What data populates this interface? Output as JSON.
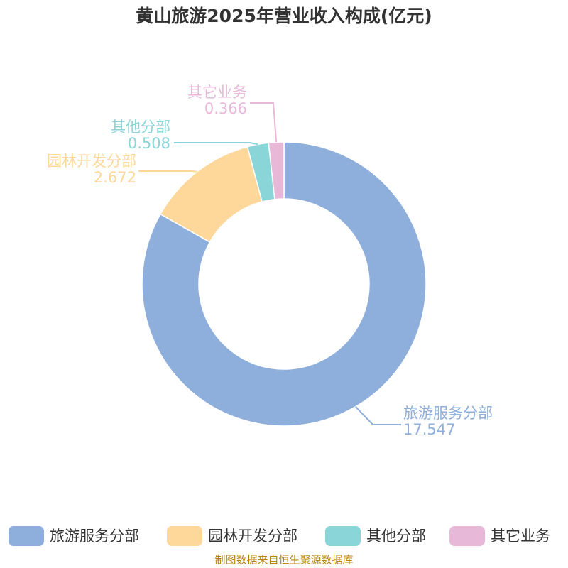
{
  "chart_data": {
    "type": "donut",
    "title": "黄山旅游2025年营业收入构成(亿元)",
    "categories": [
      "旅游服务分部",
      "园林开发分部",
      "其他分部",
      "其它业务"
    ],
    "values": [
      17.547,
      2.672,
      0.508,
      0.366
    ],
    "colors": [
      "#8eaedb",
      "#fed89b",
      "#8ad5d8",
      "#e8b8d8"
    ],
    "legend": "bottom",
    "source": "制图数据来自恒生聚源数据库"
  }
}
